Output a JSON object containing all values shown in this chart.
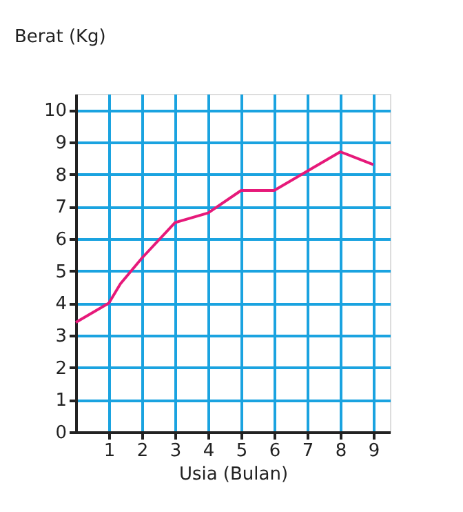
{
  "chart_data": {
    "type": "line",
    "xlabel": "Usia (Bulan)",
    "ylabel": "Berat (Kg)",
    "x": [
      0,
      1,
      1.35,
      2,
      3,
      4,
      5,
      6,
      7,
      8,
      9
    ],
    "series": [
      {
        "color": "#e6197a",
        "values": [
          3.4,
          4.0,
          4.6,
          5.4,
          6.5,
          6.8,
          7.5,
          7.5,
          8.1,
          8.7,
          8.3
        ]
      }
    ],
    "xlim": [
      0,
      9.5
    ],
    "ylim": [
      0,
      10.5
    ],
    "xticks": [
      1,
      2,
      3,
      4,
      5,
      6,
      7,
      8,
      9
    ],
    "yticks": [
      0,
      1,
      2,
      3,
      4,
      5,
      6,
      7,
      8,
      9,
      10
    ],
    "grid": true,
    "marker": "none",
    "line_style": "solid"
  }
}
